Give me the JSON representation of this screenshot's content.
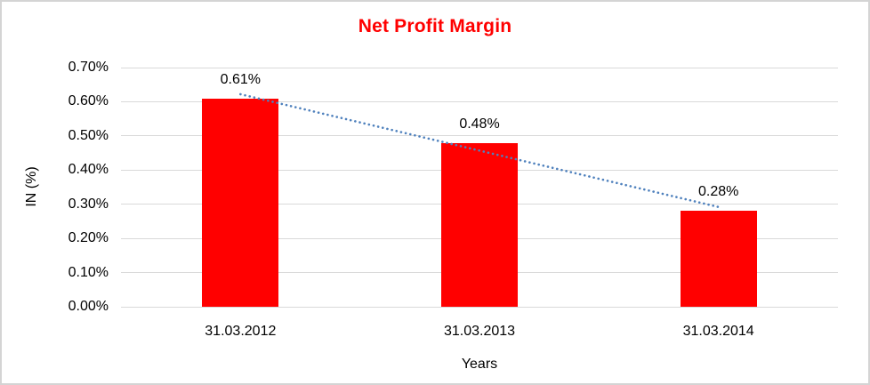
{
  "frame": {
    "background_color": "#ffffff",
    "border_color": "#d4d4d4"
  },
  "chart_data": {
    "type": "bar",
    "title": "Net Profit Margin",
    "title_color": "#ff0000",
    "xlabel": "Years",
    "ylabel": "IN (%)",
    "categories": [
      "31.03.2012",
      "31.03.2013",
      "31.03.2014"
    ],
    "values": [
      0.61,
      0.48,
      0.28
    ],
    "value_labels": [
      "0.61%",
      "0.48%",
      "0.28%"
    ],
    "bar_color": "#ff0000",
    "ylim": [
      0,
      0.7
    ],
    "yticks": [
      "0.00%",
      "0.10%",
      "0.20%",
      "0.30%",
      "0.40%",
      "0.50%",
      "0.60%",
      "0.70%"
    ],
    "ytick_values": [
      0,
      0.1,
      0.2,
      0.3,
      0.4,
      0.5,
      0.6,
      0.7
    ],
    "grid": "horizontal",
    "gridline_color": "#d9d9d9",
    "legend": "none",
    "trendline": {
      "style": "dotted",
      "color": "#4f81bd",
      "points": [
        {
          "category_index": 0,
          "value": 0.622
        },
        {
          "category_index": 2,
          "value": 0.292
        }
      ]
    }
  }
}
